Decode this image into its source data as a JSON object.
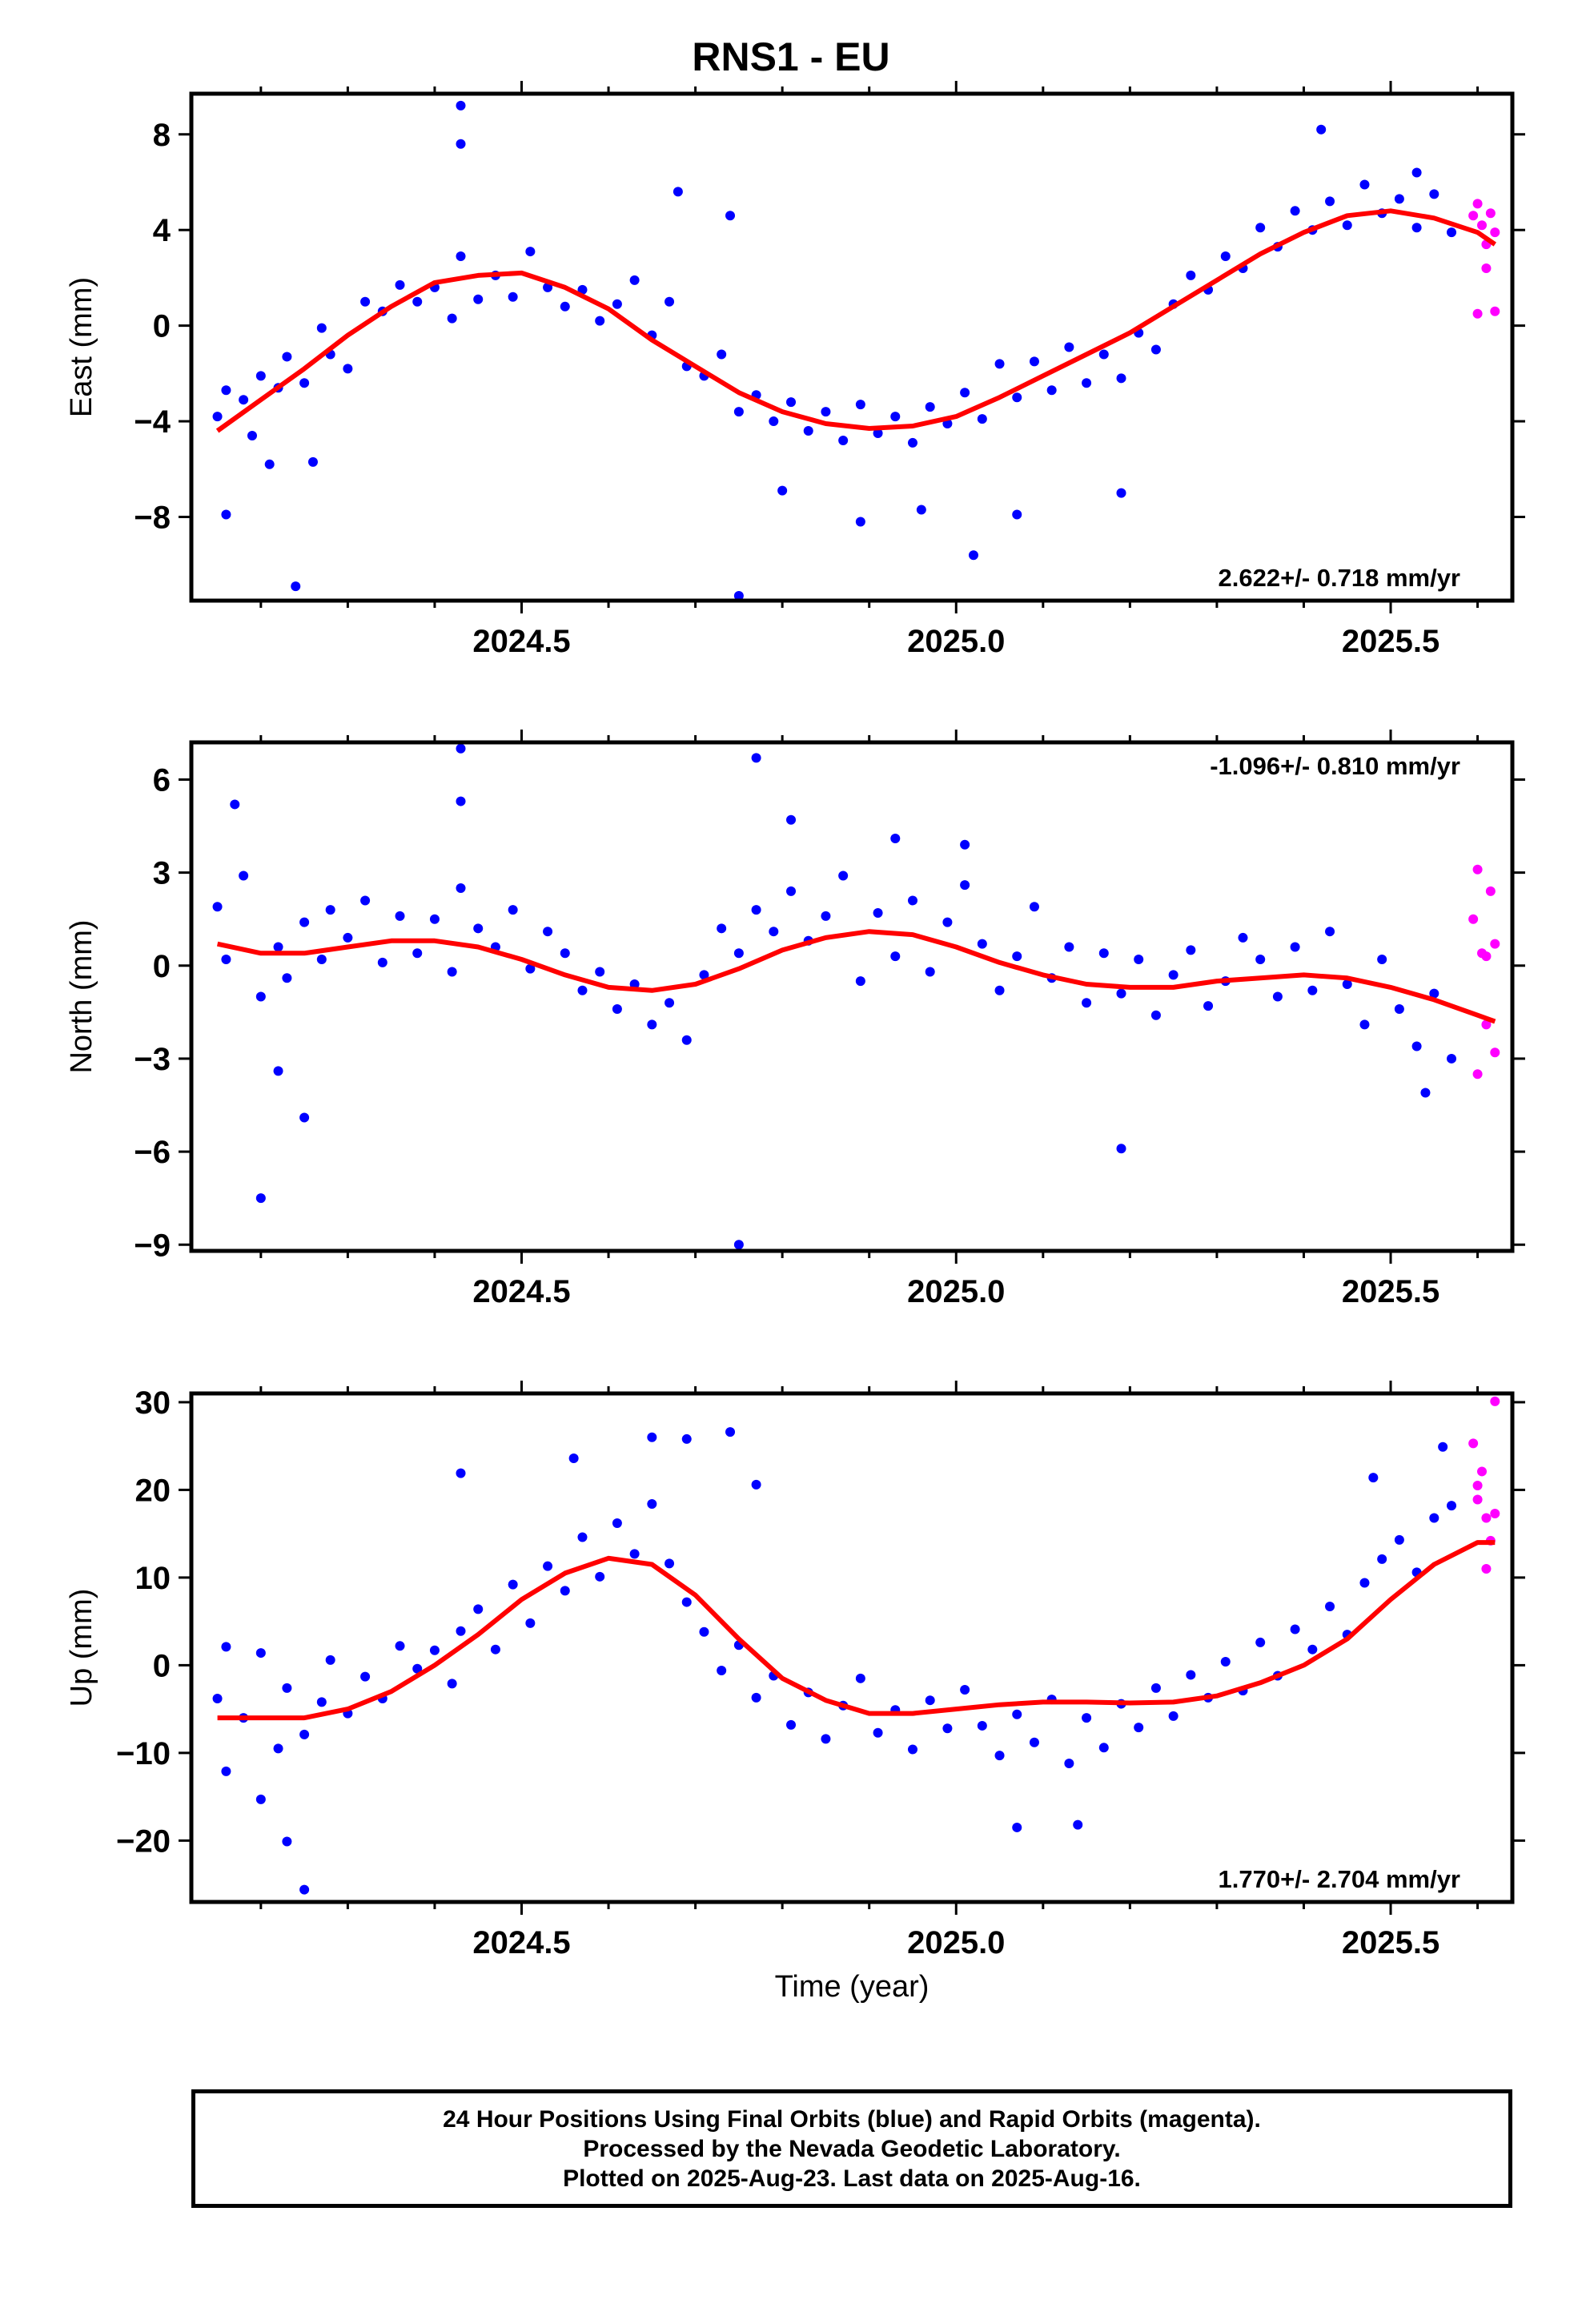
{
  "title": "RNS1 - EU",
  "xlabel": "Time (year)",
  "footer": [
    "24 Hour Positions Using Final Orbits (blue) and Rapid Orbits (magenta).",
    "Processed by the Nevada Geodetic Laboratory.",
    "Plotted on 2025-Aug-23. Last data on 2025-Aug-16."
  ],
  "colors": {
    "final": "#0000ff",
    "rapid": "#ff00ff",
    "model": "#ff0000"
  },
  "chart_data": [
    {
      "type": "scatter",
      "ylabel": "East (mm)",
      "rate_label": "2.622+/- 0.718 mm/yr",
      "xlim": [
        2024.12,
        2025.64
      ],
      "ylim": [
        -11.5,
        9.7
      ],
      "yticks": [
        8,
        4,
        0,
        -4,
        -8
      ],
      "ytick_labels": [
        "8",
        "4",
        "0",
        "−4",
        "−8"
      ],
      "xticks": [
        2024.5,
        2025.0,
        2025.5
      ],
      "xtick_labels": [
        "2024.5",
        "2025.0",
        "2025.5"
      ],
      "series": [
        {
          "name": "Final Orbits",
          "color": "#0000ff",
          "x": [
            2024.15,
            2024.16,
            2024.18,
            2024.2,
            2024.22,
            2024.23,
            2024.25,
            2024.27,
            2024.28,
            2024.3,
            2024.32,
            2024.34,
            2024.36,
            2024.38,
            2024.4,
            2024.42,
            2024.43,
            2024.45,
            2024.47,
            2024.49,
            2024.51,
            2024.53,
            2024.55,
            2024.57,
            2024.59,
            2024.61,
            2024.63,
            2024.65,
            2024.67,
            2024.69,
            2024.71,
            2024.73,
            2024.75,
            2024.77,
            2024.79,
            2024.81,
            2024.83,
            2024.85,
            2024.87,
            2024.89,
            2024.91,
            2024.93,
            2024.95,
            2024.97,
            2024.99,
            2025.01,
            2025.03,
            2025.05,
            2025.07,
            2025.09,
            2025.11,
            2025.13,
            2025.15,
            2025.17,
            2025.19,
            2025.21,
            2025.23,
            2025.25,
            2025.27,
            2025.29,
            2025.31,
            2025.33,
            2025.35,
            2025.37,
            2025.39,
            2025.41,
            2025.43,
            2025.45,
            2025.47,
            2025.49,
            2025.51,
            2025.53,
            2025.55,
            2025.57,
            2024.16,
            2024.19,
            2024.21,
            2024.24,
            2024.26,
            2024.43,
            2024.43,
            2024.68,
            2024.74,
            2024.75,
            2024.8,
            2024.89,
            2024.96,
            2025.02,
            2025.07,
            2025.19,
            2025.42,
            2025.53
          ],
          "y": [
            -3.8,
            -2.7,
            -3.1,
            -2.1,
            -2.6,
            -1.3,
            -2.4,
            -0.1,
            -1.2,
            -1.8,
            1.0,
            0.6,
            1.7,
            1.0,
            1.6,
            0.3,
            2.9,
            1.1,
            2.1,
            1.2,
            3.1,
            1.6,
            0.8,
            1.5,
            0.2,
            0.9,
            1.9,
            -0.4,
            1.0,
            -1.7,
            -2.1,
            -1.2,
            -3.6,
            -2.9,
            -4.0,
            -3.2,
            -4.4,
            -3.6,
            -4.8,
            -3.3,
            -4.5,
            -3.8,
            -4.9,
            -3.4,
            -4.1,
            -2.8,
            -3.9,
            -1.6,
            -3.0,
            -1.5,
            -2.7,
            -0.9,
            -2.4,
            -1.2,
            -2.2,
            -0.3,
            -1.0,
            0.9,
            2.1,
            1.5,
            2.9,
            2.4,
            4.1,
            3.3,
            4.8,
            4.0,
            5.2,
            4.2,
            5.9,
            4.7,
            5.3,
            4.1,
            5.5,
            3.9,
            -7.9,
            -4.6,
            -5.8,
            -10.9,
            -5.7,
            9.2,
            7.6,
            5.6,
            4.6,
            -11.3,
            -6.9,
            -8.2,
            -7.7,
            -9.6,
            -7.9,
            -7.0,
            8.2,
            6.4
          ]
        },
        {
          "name": "Rapid Orbits",
          "color": "#ff00ff",
          "x": [
            2025.595,
            2025.6,
            2025.605,
            2025.61,
            2025.615,
            2025.62,
            2025.6,
            2025.61,
            2025.62
          ],
          "y": [
            4.6,
            5.1,
            4.2,
            3.4,
            4.7,
            3.9,
            0.5,
            2.4,
            0.6
          ]
        }
      ],
      "model": {
        "name": "Model fit",
        "color": "#ff0000",
        "x": [
          2024.15,
          2024.2,
          2024.25,
          2024.3,
          2024.35,
          2024.4,
          2024.45,
          2024.5,
          2024.55,
          2024.6,
          2024.65,
          2024.7,
          2024.75,
          2024.8,
          2024.85,
          2024.9,
          2024.95,
          2025.0,
          2025.05,
          2025.1,
          2025.15,
          2025.2,
          2025.25,
          2025.3,
          2025.35,
          2025.4,
          2025.45,
          2025.5,
          2025.55,
          2025.6,
          2025.62
        ],
        "y": [
          -4.4,
          -3.1,
          -1.8,
          -0.4,
          0.8,
          1.8,
          2.1,
          2.2,
          1.6,
          0.7,
          -0.6,
          -1.7,
          -2.8,
          -3.6,
          -4.1,
          -4.3,
          -4.2,
          -3.8,
          -3.0,
          -2.1,
          -1.2,
          -0.3,
          0.8,
          1.9,
          3.0,
          3.9,
          4.6,
          4.8,
          4.5,
          3.9,
          3.4
        ]
      }
    },
    {
      "type": "scatter",
      "ylabel": "North (mm)",
      "rate_label": "-1.096+/- 0.810 mm/yr",
      "xlim": [
        2024.12,
        2025.64
      ],
      "ylim": [
        -9.2,
        7.2
      ],
      "yticks": [
        6,
        3,
        0,
        -3,
        -6,
        -9
      ],
      "ytick_labels": [
        "6",
        "3",
        "0",
        "−3",
        "−6",
        "−9"
      ],
      "xticks": [
        2024.5,
        2025.0,
        2025.5
      ],
      "xtick_labels": [
        "2024.5",
        "2025.0",
        "2025.5"
      ],
      "series": [
        {
          "name": "Final Orbits",
          "color": "#0000ff",
          "x": [
            2024.15,
            2024.16,
            2024.18,
            2024.2,
            2024.22,
            2024.23,
            2024.25,
            2024.27,
            2024.28,
            2024.3,
            2024.32,
            2024.34,
            2024.36,
            2024.38,
            2024.4,
            2024.42,
            2024.43,
            2024.45,
            2024.47,
            2024.49,
            2024.51,
            2024.53,
            2024.55,
            2024.57,
            2024.59,
            2024.61,
            2024.63,
            2024.65,
            2024.67,
            2024.69,
            2024.71,
            2024.73,
            2024.75,
            2024.77,
            2024.79,
            2024.81,
            2024.83,
            2024.85,
            2024.87,
            2024.89,
            2024.91,
            2024.93,
            2024.95,
            2024.97,
            2024.99,
            2025.01,
            2025.03,
            2025.05,
            2025.07,
            2025.09,
            2025.11,
            2025.13,
            2025.15,
            2025.17,
            2025.19,
            2025.21,
            2025.23,
            2025.25,
            2025.27,
            2025.29,
            2025.31,
            2025.33,
            2025.35,
            2025.37,
            2025.39,
            2025.41,
            2025.43,
            2025.45,
            2025.47,
            2025.49,
            2025.51,
            2025.53,
            2025.55,
            2025.57,
            2024.17,
            2024.2,
            2024.22,
            2024.25,
            2024.43,
            2024.43,
            2024.75,
            2024.77,
            2024.81,
            2024.93,
            2025.01,
            2025.19,
            2025.54
          ],
          "y": [
            1.9,
            0.2,
            2.9,
            -1.0,
            0.6,
            -0.4,
            1.4,
            0.2,
            1.8,
            0.9,
            2.1,
            0.1,
            1.6,
            0.4,
            1.5,
            -0.2,
            2.5,
            1.2,
            0.6,
            1.8,
            -0.1,
            1.1,
            0.4,
            -0.8,
            -0.2,
            -1.4,
            -0.6,
            -1.9,
            -1.2,
            -2.4,
            -0.3,
            1.2,
            0.4,
            1.8,
            1.1,
            2.4,
            0.8,
            1.6,
            2.9,
            -0.5,
            1.7,
            0.3,
            2.1,
            -0.2,
            1.4,
            2.6,
            0.7,
            -0.8,
            0.3,
            1.9,
            -0.4,
            0.6,
            -1.2,
            0.4,
            -0.9,
            0.2,
            -1.6,
            -0.3,
            0.5,
            -1.3,
            -0.5,
            0.9,
            0.2,
            -1.0,
            0.6,
            -0.8,
            1.1,
            -0.6,
            -1.9,
            0.2,
            -1.4,
            -2.6,
            -0.9,
            -3.0,
            5.2,
            -7.5,
            -3.4,
            -4.9,
            7.0,
            5.3,
            -9.0,
            6.7,
            4.7,
            4.1,
            3.9,
            -5.9,
            -4.1
          ]
        },
        {
          "name": "Rapid Orbits",
          "color": "#ff00ff",
          "x": [
            2025.595,
            2025.6,
            2025.605,
            2025.61,
            2025.615,
            2025.62,
            2025.6,
            2025.61,
            2025.62
          ],
          "y": [
            1.5,
            3.1,
            0.4,
            -1.9,
            2.4,
            0.7,
            -3.5,
            0.3,
            -2.8
          ]
        }
      ],
      "model": {
        "name": "Model fit",
        "color": "#ff0000",
        "x": [
          2024.15,
          2024.2,
          2024.25,
          2024.3,
          2024.35,
          2024.4,
          2024.45,
          2024.5,
          2024.55,
          2024.6,
          2024.65,
          2024.7,
          2024.75,
          2024.8,
          2024.85,
          2024.9,
          2024.95,
          2025.0,
          2025.05,
          2025.1,
          2025.15,
          2025.2,
          2025.25,
          2025.3,
          2025.35,
          2025.4,
          2025.45,
          2025.5,
          2025.55,
          2025.6,
          2025.62
        ],
        "y": [
          0.7,
          0.4,
          0.4,
          0.6,
          0.8,
          0.8,
          0.6,
          0.2,
          -0.3,
          -0.7,
          -0.8,
          -0.6,
          -0.1,
          0.5,
          0.9,
          1.1,
          1.0,
          0.6,
          0.1,
          -0.3,
          -0.6,
          -0.7,
          -0.7,
          -0.5,
          -0.4,
          -0.3,
          -0.4,
          -0.7,
          -1.1,
          -1.6,
          -1.8
        ]
      }
    },
    {
      "type": "scatter",
      "ylabel": "Up (mm)",
      "rate_label": "1.770+/- 2.704 mm/yr",
      "xlim": [
        2024.12,
        2025.64
      ],
      "ylim": [
        -27,
        31
      ],
      "yticks": [
        30,
        20,
        10,
        0,
        -10,
        -20
      ],
      "ytick_labels": [
        "30",
        "20",
        "10",
        "0",
        "−10",
        "−20"
      ],
      "xticks": [
        2024.5,
        2025.0,
        2025.5
      ],
      "xtick_labels": [
        "2024.5",
        "2025.0",
        "2025.5"
      ],
      "series": [
        {
          "name": "Final Orbits",
          "color": "#0000ff",
          "x": [
            2024.15,
            2024.16,
            2024.18,
            2024.2,
            2024.22,
            2024.23,
            2024.25,
            2024.27,
            2024.28,
            2024.3,
            2024.32,
            2024.34,
            2024.36,
            2024.38,
            2024.4,
            2024.42,
            2024.43,
            2024.45,
            2024.47,
            2024.49,
            2024.51,
            2024.53,
            2024.55,
            2024.57,
            2024.59,
            2024.61,
            2024.63,
            2024.65,
            2024.67,
            2024.69,
            2024.71,
            2024.73,
            2024.75,
            2024.77,
            2024.79,
            2024.81,
            2024.83,
            2024.85,
            2024.87,
            2024.89,
            2024.91,
            2024.93,
            2024.95,
            2024.97,
            2024.99,
            2025.01,
            2025.03,
            2025.05,
            2025.07,
            2025.09,
            2025.11,
            2025.13,
            2025.15,
            2025.17,
            2025.19,
            2025.21,
            2025.23,
            2025.25,
            2025.27,
            2025.29,
            2025.31,
            2025.33,
            2025.35,
            2025.37,
            2025.39,
            2025.41,
            2025.43,
            2025.45,
            2025.47,
            2025.49,
            2025.51,
            2025.53,
            2025.55,
            2025.57,
            2024.16,
            2024.2,
            2024.23,
            2024.25,
            2024.43,
            2024.56,
            2024.65,
            2024.69,
            2024.74,
            2024.77,
            2025.07,
            2025.14,
            2025.48,
            2025.56
          ],
          "y": [
            -3.8,
            2.1,
            -6.0,
            1.4,
            -9.5,
            -2.6,
            -7.9,
            -4.2,
            0.6,
            -5.5,
            -1.3,
            -3.8,
            2.2,
            -0.4,
            1.7,
            -2.1,
            3.9,
            6.4,
            1.8,
            9.2,
            4.8,
            11.3,
            8.5,
            14.6,
            10.1,
            16.2,
            12.7,
            18.4,
            11.6,
            7.2,
            3.8,
            -0.6,
            2.3,
            -3.7,
            -1.2,
            -6.8,
            -3.1,
            -8.4,
            -4.6,
            -1.5,
            -7.7,
            -5.1,
            -9.6,
            -4.0,
            -7.2,
            -2.8,
            -6.9,
            -10.3,
            -5.6,
            -8.8,
            -3.9,
            -11.2,
            -6.0,
            -9.4,
            -4.4,
            -7.1,
            -2.6,
            -5.8,
            -1.1,
            -3.7,
            0.4,
            -2.9,
            2.6,
            -1.2,
            4.1,
            1.8,
            6.7,
            3.5,
            9.4,
            12.1,
            14.3,
            10.6,
            16.8,
            18.2,
            -12.1,
            -15.3,
            -20.1,
            -25.6,
            21.9,
            23.6,
            26.0,
            25.8,
            26.6,
            20.6,
            -18.5,
            -18.2,
            21.4,
            24.9
          ]
        },
        {
          "name": "Rapid Orbits",
          "color": "#ff00ff",
          "x": [
            2025.595,
            2025.6,
            2025.605,
            2025.61,
            2025.615,
            2025.62,
            2025.6,
            2025.61,
            2025.62
          ],
          "y": [
            25.3,
            20.5,
            22.1,
            16.8,
            14.2,
            30.1,
            18.9,
            11.0,
            17.3
          ]
        }
      ],
      "model": {
        "name": "Model fit",
        "color": "#ff0000",
        "x": [
          2024.15,
          2024.2,
          2024.25,
          2024.3,
          2024.35,
          2024.4,
          2024.45,
          2024.5,
          2024.55,
          2024.6,
          2024.65,
          2024.7,
          2024.75,
          2024.8,
          2024.85,
          2024.9,
          2024.95,
          2025.0,
          2025.05,
          2025.1,
          2025.15,
          2025.2,
          2025.25,
          2025.3,
          2025.35,
          2025.4,
          2025.45,
          2025.5,
          2025.55,
          2025.6,
          2025.62
        ],
        "y": [
          -6.0,
          -6.0,
          -6.0,
          -5.0,
          -3.0,
          0.0,
          3.5,
          7.5,
          10.5,
          12.2,
          11.5,
          8.0,
          3.0,
          -1.5,
          -4.0,
          -5.5,
          -5.5,
          -5.0,
          -4.5,
          -4.2,
          -4.2,
          -4.3,
          -4.2,
          -3.5,
          -2.0,
          0.0,
          3.0,
          7.5,
          11.5,
          14.0,
          14.0
        ]
      }
    }
  ]
}
